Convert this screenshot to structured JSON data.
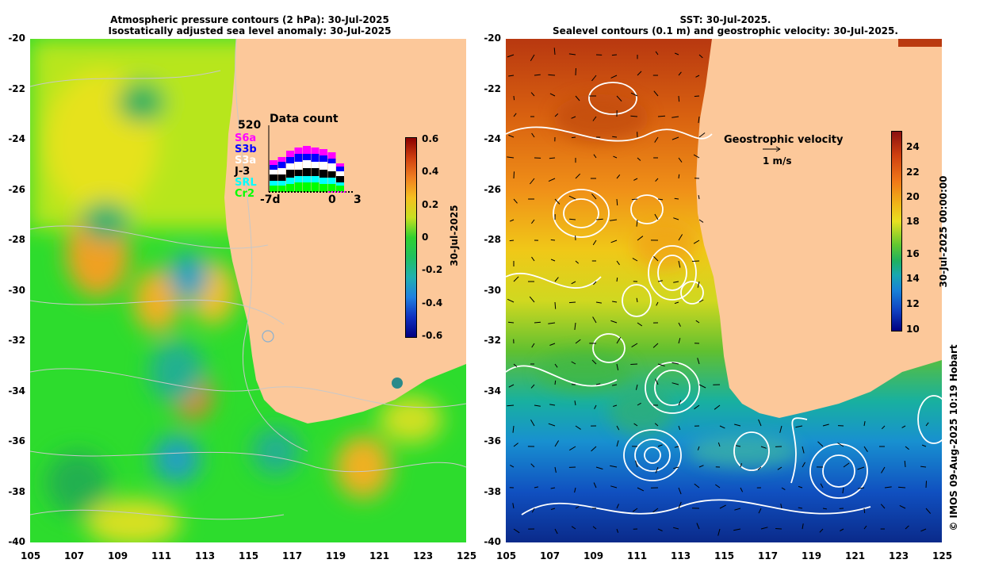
{
  "left_panel": {
    "title_line1": "Atmospheric pressure contours (2 hPa): 30-Jul-2025",
    "title_line2": "Isostatically adjusted sea level anomaly: 30-Jul-2025",
    "colorbar": {
      "ticks": [
        "0.6",
        "0.4",
        "0.2",
        "0",
        "-0.2",
        "-0.4",
        "-0.6"
      ],
      "label": "30-Jul-2025"
    },
    "data_count": {
      "title": "Data count",
      "max_label": "520",
      "satellites": [
        {
          "name": "S6a",
          "color": "#ff00ff"
        },
        {
          "name": "S3b",
          "color": "#0000ff"
        },
        {
          "name": "S3a",
          "color": "#ffffff"
        },
        {
          "name": "J-3",
          "color": "#000000"
        },
        {
          "name": "SRL",
          "color": "#00ffff"
        },
        {
          "name": "Cr2",
          "color": "#00ff00"
        }
      ],
      "x_labels": [
        "-7d",
        "0",
        "3"
      ]
    }
  },
  "right_panel": {
    "title_line1": "SST: 30-Jul-2025.",
    "title_line2": "Sealevel contours (0.1 m) and geostrophic velocity: 30-Jul-2025.",
    "legend_title": "Geostrophic velocity",
    "legend_scale": "1 m/s",
    "colorbar": {
      "ticks": [
        "24",
        "22",
        "20",
        "18",
        "16",
        "14",
        "12",
        "10"
      ],
      "label": "30-Jul-2025 00:00:00"
    }
  },
  "axes": {
    "lat_ticks": [
      "-20",
      "-22",
      "-24",
      "-26",
      "-28",
      "-30",
      "-32",
      "-34",
      "-36",
      "-38",
      "-40"
    ],
    "lon_ticks": [
      "105",
      "107",
      "109",
      "111",
      "113",
      "115",
      "117",
      "119",
      "121",
      "123",
      "125"
    ]
  },
  "credit": "© IMOS 09-Aug-2025 10:19 Hobart"
}
